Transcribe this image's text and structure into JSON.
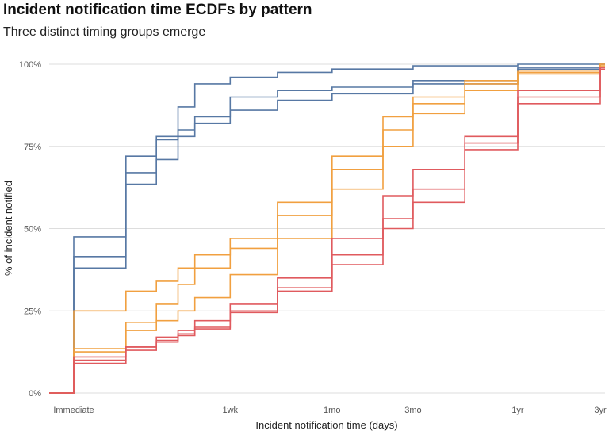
{
  "chart_data": {
    "type": "line",
    "title": "Incident notification time ECDFs by pattern",
    "subtitle": "Three distinct timing groups emerge",
    "xlabel": "Incident notification time (days)",
    "ylabel": "% of incident notified",
    "x_scale": "log",
    "x_ticks": [
      {
        "label": "Immediate",
        "value": 0
      },
      {
        "label": "1wk",
        "value": 7
      },
      {
        "label": "1mo",
        "value": 30
      },
      {
        "label": "3mo",
        "value": 90
      },
      {
        "label": "1yr",
        "value": 365
      },
      {
        "label": "3yr",
        "value": 1095
      }
    ],
    "y_ticks": [
      "0%",
      "25%",
      "50%",
      "75%",
      "100%"
    ],
    "ylim": [
      0,
      100
    ],
    "grid": "horizontal",
    "colors": {
      "blue": "#5778a4",
      "orange": "#f1a040",
      "red": "#e05a5e"
    },
    "series": [
      {
        "color": "#5778a4",
        "points": [
          [
            0,
            47.5
          ],
          [
            1,
            72
          ],
          [
            2,
            78
          ],
          [
            3,
            87
          ],
          [
            4,
            94
          ],
          [
            7,
            96
          ],
          [
            14,
            97.5
          ],
          [
            30,
            98.5
          ],
          [
            90,
            99.5
          ],
          [
            365,
            100
          ],
          [
            1095,
            100
          ]
        ]
      },
      {
        "color": "#5778a4",
        "points": [
          [
            0,
            41.5
          ],
          [
            1,
            67
          ],
          [
            2,
            77
          ],
          [
            3,
            80
          ],
          [
            4,
            84
          ],
          [
            7,
            90
          ],
          [
            14,
            92
          ],
          [
            30,
            93
          ],
          [
            90,
            95
          ],
          [
            365,
            99
          ],
          [
            1095,
            100
          ]
        ]
      },
      {
        "color": "#5778a4",
        "points": [
          [
            0,
            38
          ],
          [
            1,
            63.5
          ],
          [
            2,
            71
          ],
          [
            3,
            78
          ],
          [
            4,
            82
          ],
          [
            7,
            86
          ],
          [
            14,
            89
          ],
          [
            30,
            91
          ],
          [
            90,
            94
          ],
          [
            365,
            98.5
          ],
          [
            1095,
            100
          ]
        ]
      },
      {
        "color": "#f1a040",
        "points": [
          [
            0,
            25
          ],
          [
            1,
            31
          ],
          [
            2,
            34
          ],
          [
            3,
            38
          ],
          [
            4,
            42
          ],
          [
            7,
            47
          ],
          [
            14,
            58
          ],
          [
            30,
            72
          ],
          [
            60,
            84
          ],
          [
            90,
            90
          ],
          [
            180,
            95
          ],
          [
            365,
            98
          ],
          [
            1095,
            100
          ]
        ]
      },
      {
        "color": "#f1a040",
        "points": [
          [
            0,
            13.5
          ],
          [
            1,
            21.5
          ],
          [
            2,
            27
          ],
          [
            3,
            33
          ],
          [
            4,
            38
          ],
          [
            7,
            44
          ],
          [
            14,
            54
          ],
          [
            30,
            68
          ],
          [
            60,
            80
          ],
          [
            90,
            88
          ],
          [
            180,
            94
          ],
          [
            365,
            97.5
          ],
          [
            1095,
            100
          ]
        ]
      },
      {
        "color": "#f1a040",
        "points": [
          [
            0,
            12.5
          ],
          [
            1,
            19
          ],
          [
            2,
            22
          ],
          [
            3,
            25
          ],
          [
            4,
            29
          ],
          [
            7,
            36
          ],
          [
            14,
            47
          ],
          [
            30,
            62
          ],
          [
            60,
            75
          ],
          [
            90,
            85
          ],
          [
            180,
            92
          ],
          [
            365,
            97
          ],
          [
            1095,
            99.5
          ]
        ]
      },
      {
        "color": "#e05a5e",
        "points": [
          [
            0,
            11
          ],
          [
            1,
            14
          ],
          [
            2,
            17
          ],
          [
            3,
            19
          ],
          [
            4,
            22
          ],
          [
            7,
            27
          ],
          [
            14,
            35
          ],
          [
            30,
            47
          ],
          [
            60,
            60
          ],
          [
            90,
            68
          ],
          [
            180,
            78
          ],
          [
            365,
            88
          ],
          [
            1095,
            98.5
          ]
        ]
      },
      {
        "color": "#e05a5e",
        "points": [
          [
            0,
            10
          ],
          [
            1,
            14
          ],
          [
            2,
            16
          ],
          [
            3,
            18
          ],
          [
            4,
            20
          ],
          [
            7,
            25
          ],
          [
            14,
            32
          ],
          [
            30,
            42
          ],
          [
            60,
            53
          ],
          [
            90,
            62
          ],
          [
            180,
            76
          ],
          [
            365,
            90
          ],
          [
            1095,
            99
          ]
        ]
      },
      {
        "color": "#e05a5e",
        "points": [
          [
            0,
            9
          ],
          [
            1,
            13
          ],
          [
            2,
            15.5
          ],
          [
            3,
            17.5
          ],
          [
            4,
            19.5
          ],
          [
            7,
            24.5
          ],
          [
            14,
            31
          ],
          [
            30,
            39
          ],
          [
            60,
            50
          ],
          [
            90,
            58
          ],
          [
            180,
            74
          ],
          [
            365,
            92
          ],
          [
            1095,
            99
          ]
        ]
      }
    ]
  }
}
